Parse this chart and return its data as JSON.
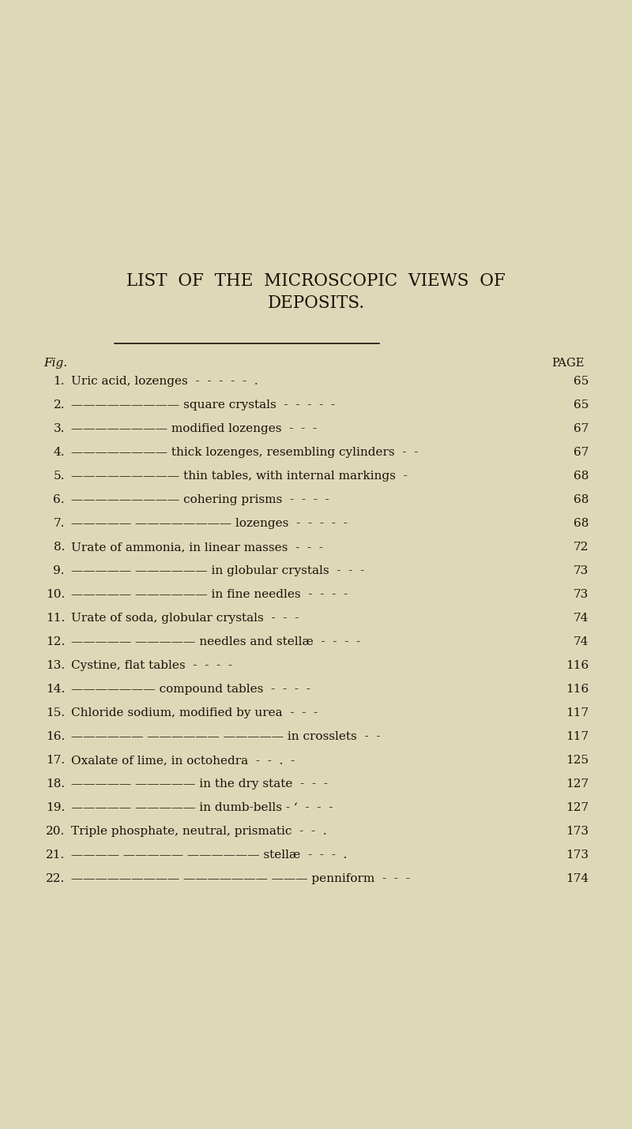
{
  "bg_color": "#ddd9b8",
  "title_line1": "LIST  OF  THE  MICROSCOPIC  VIEWS  OF",
  "title_line2": "DEPOSITS.",
  "fig_label": "Fig.",
  "page_label": "PAGE",
  "entries": [
    {
      "num": "1.",
      "prefix": "",
      "text": "Uric acid, lozenges  -  -  -  -  -  .",
      "page": "65"
    },
    {
      "num": "2.",
      "prefix": "—————————",
      "text": "square crystals  -  -  -  -  -",
      "page": "65"
    },
    {
      "num": "3.",
      "prefix": "————————",
      "text": "modified lozenges  -  -  -",
      "page": "67"
    },
    {
      "num": "4.",
      "prefix": "————————",
      "text": "thick lozenges, resembling cylinders  -  -",
      "page": "67"
    },
    {
      "num": "5.",
      "prefix": "—————————",
      "text": "thin tables, with internal markings  -",
      "page": "68"
    },
    {
      "num": "6.",
      "prefix": "—————————",
      "text": "cohering prisms  -  -  -  -",
      "page": "68"
    },
    {
      "num": "7.",
      "prefix": "————— ————————",
      "text": "lozenges  -  -  -  -  -",
      "page": "68"
    },
    {
      "num": "8.",
      "prefix": "",
      "text": "Urate of ammonia, in linear masses  -  -  -",
      "page": "72"
    },
    {
      "num": "9.",
      "prefix": "————— ——————",
      "text": "in globular crystals  -  -  -",
      "page": "73"
    },
    {
      "num": "10.",
      "prefix": "————— ——————",
      "text": "in fine needles  -  -  -  -",
      "page": "73"
    },
    {
      "num": "11.",
      "prefix": "",
      "text": "Urate of soda, globular crystals  -  -  -",
      "page": "74"
    },
    {
      "num": "12.",
      "prefix": "————— —————",
      "text": "needles and stellæ  -  -  -  -",
      "page": "74"
    },
    {
      "num": "13.",
      "prefix": "",
      "text": "Cystine, flat tables  -  -  -  -",
      "page": "116"
    },
    {
      "num": "14.",
      "prefix": "———————",
      "text": "compound tables  -  -  -  -",
      "page": "116"
    },
    {
      "num": "15.",
      "prefix": "",
      "text": "Chloride sodium, modified by urea  -  -  -",
      "page": "117"
    },
    {
      "num": "16.",
      "prefix": "—————— —————— —————",
      "text": "in crosslets  -  -",
      "page": "117"
    },
    {
      "num": "17.",
      "prefix": "",
      "text": "Oxalate of lime, in octohedra  -  -  .  -",
      "page": "125"
    },
    {
      "num": "18.",
      "prefix": "————— —————",
      "text": "in the dry state  -  -  -",
      "page": "127"
    },
    {
      "num": "19.",
      "prefix": "————— —————",
      "text": "in dumb-bells - ‘  -  -  -",
      "page": "127"
    },
    {
      "num": "20.",
      "prefix": "",
      "text": "Triple phosphate, neutral, prismatic  -  -  .",
      "page": "173"
    },
    {
      "num": "21.",
      "prefix": "———— ————— ——————",
      "text": "stellæ  -  -  -  .",
      "page": "173"
    },
    {
      "num": "22.",
      "prefix": "————————— ——————— ———",
      "text": "penniform  -  -  -",
      "page": "174"
    }
  ],
  "text_color": "#1a1008",
  "title_fontsize": 15.5,
  "label_fontsize": 11,
  "entry_fontsize": 11,
  "num_fontsize": 11
}
